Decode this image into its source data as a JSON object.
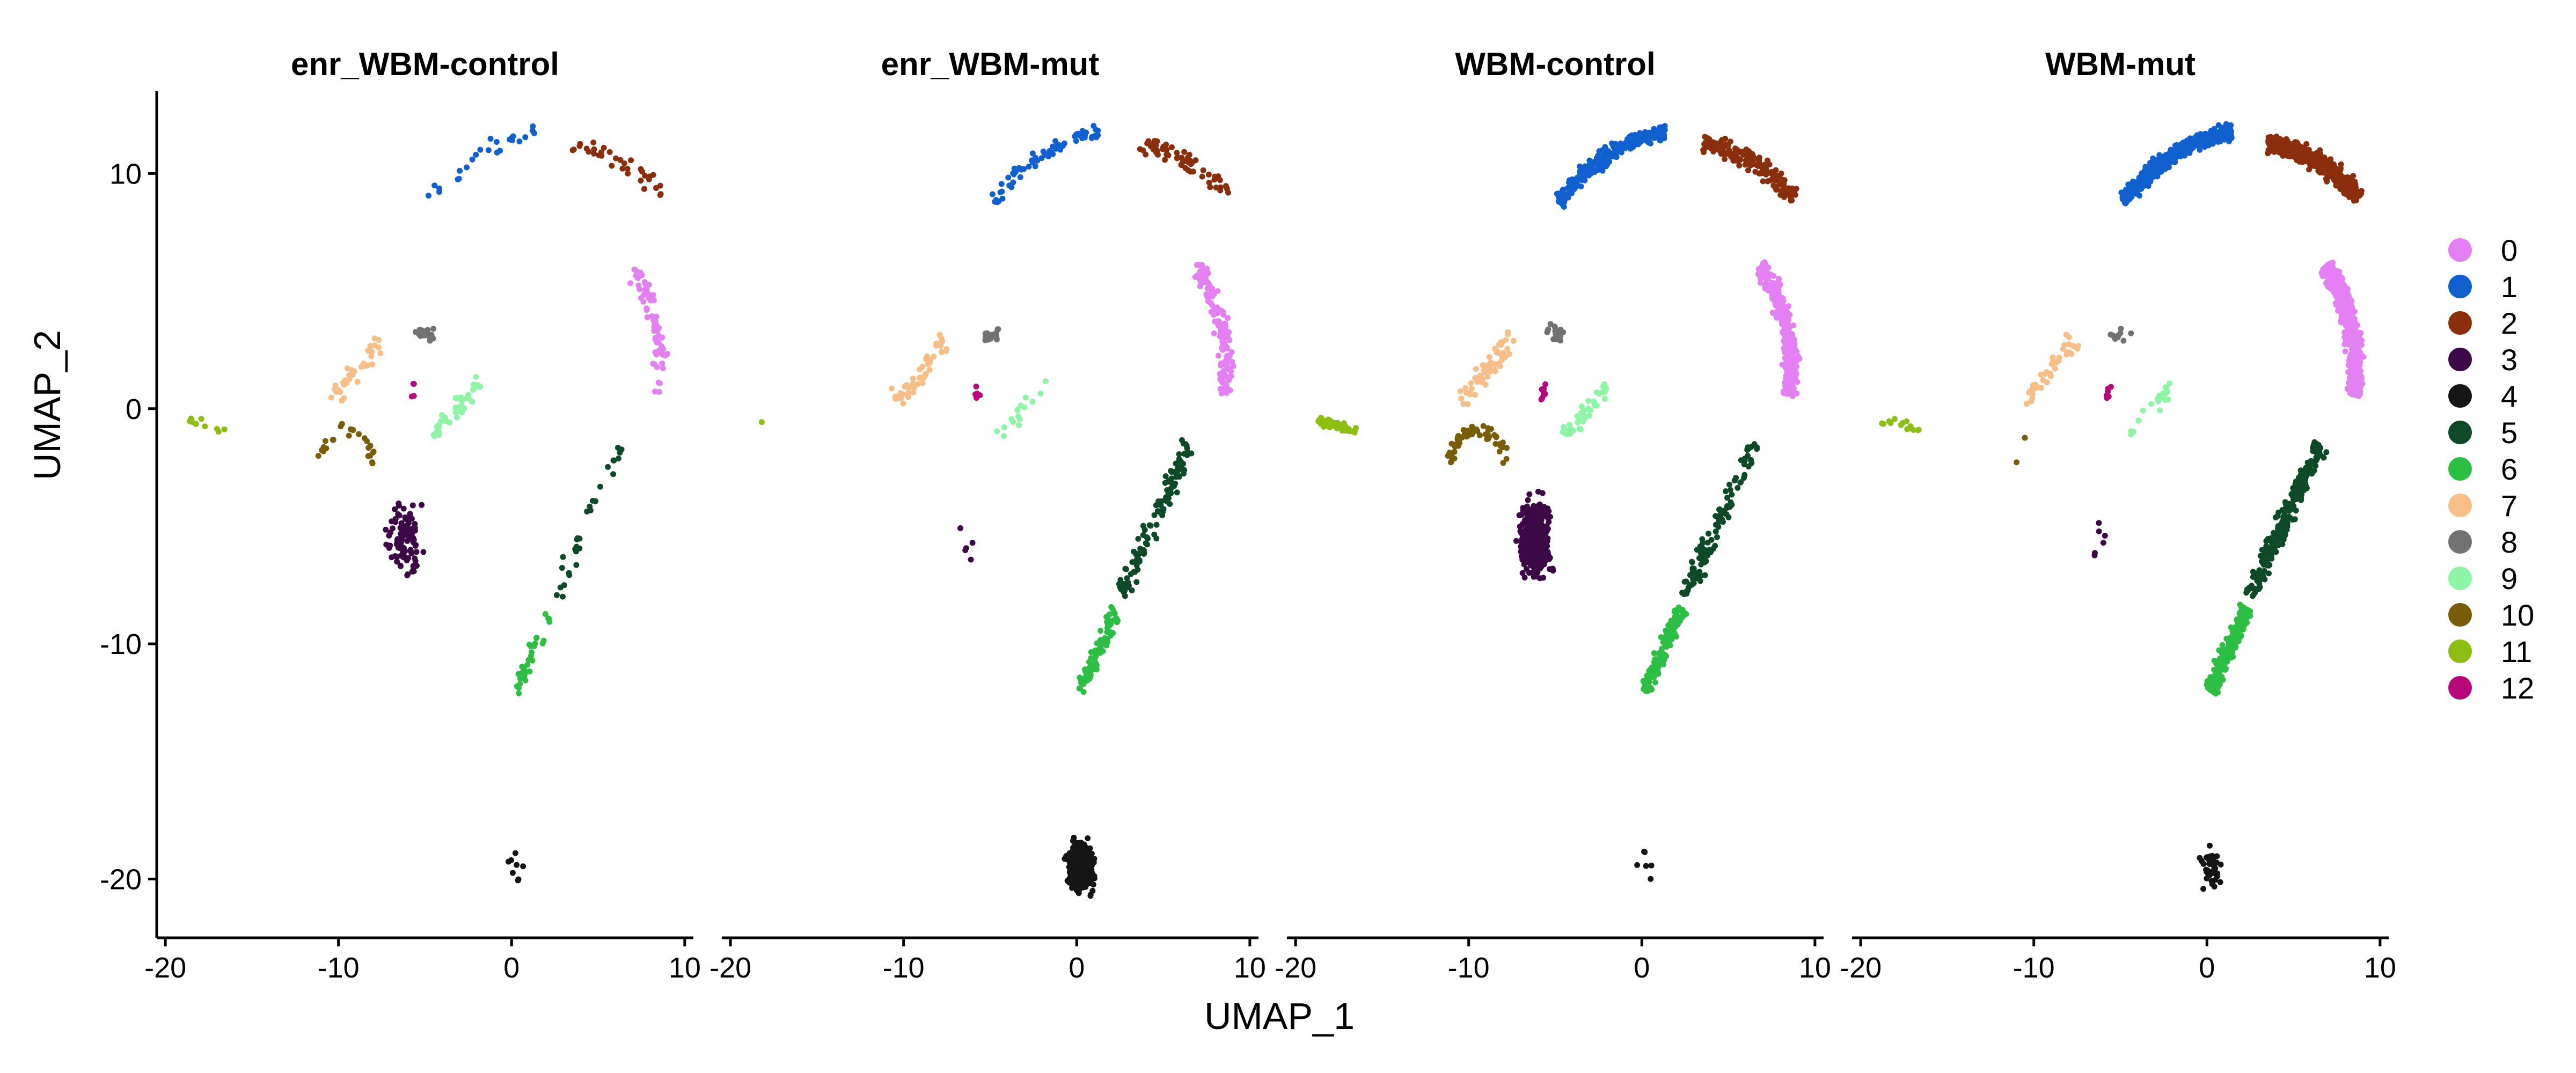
{
  "chart_data": {
    "type": "scatter",
    "xlabel": "UMAP_1",
    "ylabel": "UMAP_2",
    "xlim": [
      -20.5,
      10.5
    ],
    "ylim": [
      -22.5,
      13.5
    ],
    "xticks": [
      -20,
      -10,
      0,
      10
    ],
    "xtick_labels": [
      "-20",
      "-10",
      "0",
      "10"
    ],
    "yticks": [
      10,
      0,
      -10,
      -20
    ],
    "ytick_labels": [
      "10",
      "0",
      "-10",
      "-20"
    ],
    "legend_position": "right",
    "clusters": [
      {
        "name": "0",
        "color": "#E57FF4"
      },
      {
        "name": "1",
        "color": "#1160CF"
      },
      {
        "name": "2",
        "color": "#8B2E0B"
      },
      {
        "name": "3",
        "color": "#3D0846"
      },
      {
        "name": "4",
        "color": "#151515"
      },
      {
        "name": "5",
        "color": "#0E4A28"
      },
      {
        "name": "6",
        "color": "#2DBE44"
      },
      {
        "name": "7",
        "color": "#F7BE87"
      },
      {
        "name": "8",
        "color": "#727272"
      },
      {
        "name": "9",
        "color": "#8EF5A6"
      },
      {
        "name": "10",
        "color": "#7A5D08"
      },
      {
        "name": "11",
        "color": "#8DBE14"
      },
      {
        "name": "12",
        "color": "#B7077B"
      }
    ],
    "cluster_regions": [
      {
        "cluster": "1",
        "shape": "arc",
        "cx": 2.5,
        "cy": 1.5,
        "r": 10.3,
        "a0": 135,
        "a1": 96,
        "w": 0.5
      },
      {
        "cluster": "2",
        "shape": "arc",
        "cx": 2.5,
        "cy": 1.5,
        "r": 9.8,
        "a0": 84,
        "a1": 50,
        "w": 0.6
      },
      {
        "cluster": "0",
        "shape": "arc",
        "cx": 1.8,
        "cy": 1.5,
        "r": 6.8,
        "a0": 42,
        "a1": -8,
        "w": 0.6
      },
      {
        "cluster": "5",
        "shape": "seg",
        "x0": 6.5,
        "y0": -1.5,
        "x1": 2.5,
        "y1": -8,
        "w": 0.6
      },
      {
        "cluster": "6",
        "shape": "seg",
        "x0": 2.3,
        "y0": -8.5,
        "x1": 0.2,
        "y1": -12,
        "w": 0.5
      },
      {
        "cluster": "7",
        "shape": "seg",
        "x0": -10.5,
        "y0": 0.3,
        "x1": -7.5,
        "y1": 3.0,
        "w": 0.6
      },
      {
        "cluster": "8",
        "shape": "blob",
        "cx": -5.0,
        "cy": 3.2,
        "rx": 0.8,
        "ry": 0.5
      },
      {
        "cluster": "9",
        "shape": "seg",
        "x0": -4.5,
        "y0": -1.2,
        "x1": -1.8,
        "y1": 1.2,
        "w": 0.5
      },
      {
        "cluster": "10",
        "shape": "arc",
        "cx": -9.5,
        "cy": -2.5,
        "r": 1.6,
        "a0": 175,
        "a1": 5,
        "w": 0.4
      },
      {
        "cluster": "3",
        "shape": "blob",
        "cx": -6.2,
        "cy": -5.5,
        "rx": 1.2,
        "ry": 2.2
      },
      {
        "cluster": "11",
        "shape": "seg",
        "x0": -18.8,
        "y0": -0.5,
        "x1": -16.5,
        "y1": -0.9,
        "w": 0.3
      },
      {
        "cluster": "12",
        "shape": "blob",
        "cx": -5.7,
        "cy": 0.7,
        "rx": 0.3,
        "ry": 0.6
      },
      {
        "cluster": "4",
        "shape": "blob",
        "cx": 0.2,
        "cy": -19.5,
        "rx": 1.0,
        "ry": 1.4
      }
    ],
    "panels": [
      {
        "title": "enr_WBM-control",
        "counts": {
          "0": 70,
          "1": 25,
          "2": 35,
          "3": 110,
          "4": 8,
          "5": 30,
          "6": 30,
          "7": 35,
          "8": 20,
          "9": 45,
          "10": 25,
          "11": 10,
          "12": 4
        }
      },
      {
        "title": "enr_WBM-mut",
        "counts": {
          "0": 140,
          "1": 70,
          "2": 60,
          "3": 5,
          "4": 420,
          "5": 110,
          "6": 90,
          "7": 50,
          "8": 20,
          "9": 15,
          "10": 0,
          "11": 1,
          "12": 6
        }
      },
      {
        "title": "WBM-control",
        "counts": {
          "0": 320,
          "1": 240,
          "2": 180,
          "3": 480,
          "4": 6,
          "5": 110,
          "6": 120,
          "7": 60,
          "8": 20,
          "9": 40,
          "10": 60,
          "11": 60,
          "12": 8
        }
      },
      {
        "title": "WBM-mut",
        "counts": {
          "0": 750,
          "1": 420,
          "2": 450,
          "3": 6,
          "4": 40,
          "5": 260,
          "6": 240,
          "7": 40,
          "8": 10,
          "9": 20,
          "10": 2,
          "11": 15,
          "12": 6
        }
      }
    ]
  }
}
